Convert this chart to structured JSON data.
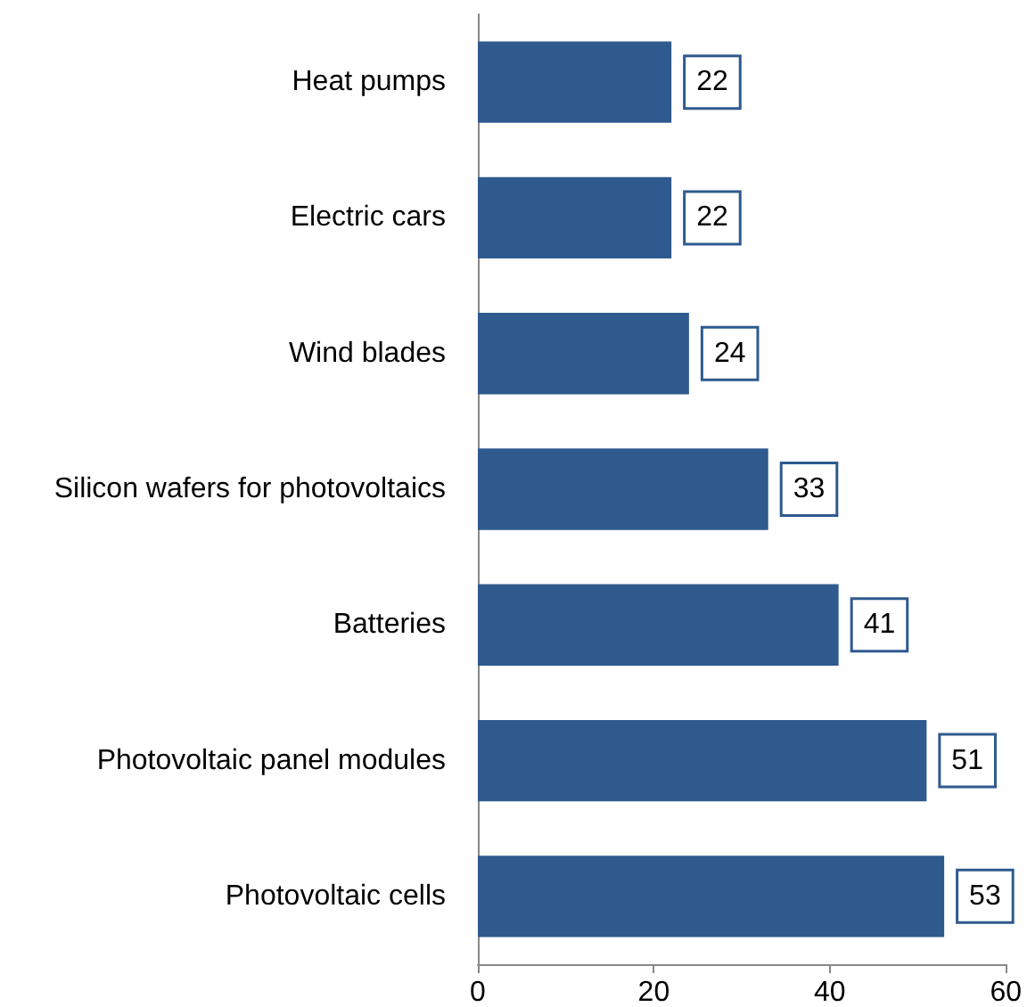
{
  "chart_data": {
    "type": "bar",
    "orientation": "horizontal",
    "categories": [
      "Heat pumps",
      "Electric cars",
      "Wind blades",
      "Silicon wafers for photovoltaics",
      "Batteries",
      "Photovoltaic panel modules",
      "Photovoltaic cells"
    ],
    "values": [
      22,
      22,
      24,
      33,
      41,
      51,
      53
    ],
    "color": "#2e5a8e",
    "xlim": [
      0,
      60
    ],
    "xticks": [
      0,
      20,
      40,
      60
    ],
    "grid": false,
    "data_labels": true
  }
}
